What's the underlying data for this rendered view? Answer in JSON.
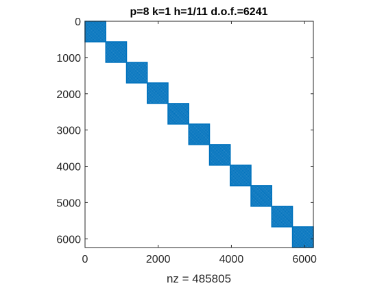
{
  "chart_data": {
    "type": "spy",
    "title": "p=8 k=1 h=1/11 d.o.f.=6241",
    "xlabel": "nz = 485805",
    "ylabel": "",
    "xlim": [
      0,
      6241
    ],
    "ylim": [
      0,
      6241
    ],
    "y_reversed": true,
    "grid": false,
    "x_ticks": [
      0,
      2000,
      4000,
      6000
    ],
    "y_ticks": [
      0,
      1000,
      2000,
      3000,
      4000,
      5000,
      6000
    ],
    "x_tick_labels": [
      "0",
      "2000",
      "4000",
      "6000"
    ],
    "y_tick_labels": [
      "0",
      "1000",
      "2000",
      "3000",
      "4000",
      "5000",
      "6000"
    ],
    "marker_color": "#0072BD",
    "blocks": [
      {
        "row_start": 1,
        "row_end": 567,
        "col_start": 1,
        "col_end": 567
      },
      {
        "row_start": 568,
        "row_end": 1134,
        "col_start": 568,
        "col_end": 1134
      },
      {
        "row_start": 1135,
        "row_end": 1701,
        "col_start": 1135,
        "col_end": 1701
      },
      {
        "row_start": 1702,
        "row_end": 2268,
        "col_start": 1702,
        "col_end": 2268
      },
      {
        "row_start": 2269,
        "row_end": 2835,
        "col_start": 2269,
        "col_end": 2835
      },
      {
        "row_start": 2836,
        "row_end": 3402,
        "col_start": 2836,
        "col_end": 3402
      },
      {
        "row_start": 3403,
        "row_end": 3969,
        "col_start": 3403,
        "col_end": 3969
      },
      {
        "row_start": 3970,
        "row_end": 4536,
        "col_start": 3970,
        "col_end": 4536
      },
      {
        "row_start": 4537,
        "row_end": 5103,
        "col_start": 4537,
        "col_end": 5103
      },
      {
        "row_start": 5104,
        "row_end": 5670,
        "col_start": 5104,
        "col_end": 5670
      },
      {
        "row_start": 5671,
        "row_end": 6241,
        "col_start": 5671,
        "col_end": 6241
      }
    ]
  }
}
